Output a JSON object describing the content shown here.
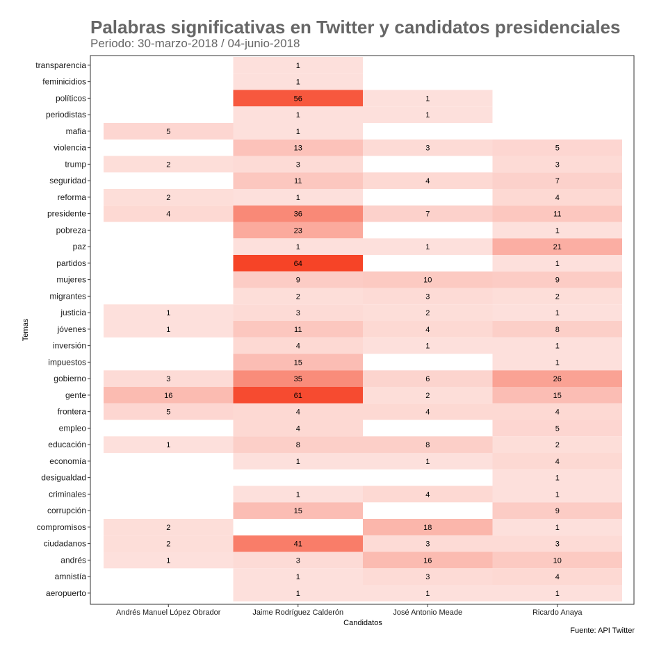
{
  "chart_data": {
    "type": "heatmap",
    "title": "Palabras significativas en Twitter y candidatos presidenciales",
    "subtitle": "Periodo: 30-marzo-2018 / 04-junio-2018",
    "xlabel": "Candidatos",
    "ylabel": "Temas",
    "caption": "Fuente: API Twitter",
    "grid": false,
    "legend": "none",
    "color_low": "#fde0dc",
    "color_high": "#f64427",
    "value_range": [
      1,
      64
    ],
    "columns": [
      "Andrés Manuel López Obrador",
      "Jaime Rodríguez Calderón",
      "José Antonio Meade",
      "Ricardo Anaya"
    ],
    "rows": [
      "transparencia",
      "feminicidios",
      "políticos",
      "periodistas",
      "mafia",
      "violencia",
      "trump",
      "seguridad",
      "reforma",
      "presidente",
      "pobreza",
      "paz",
      "partidos",
      "mujeres",
      "migrantes",
      "justicia",
      "jóvenes",
      "inversión",
      "impuestos",
      "gobierno",
      "gente",
      "frontera",
      "empleo",
      "educación",
      "economía",
      "desigualdad",
      "criminales",
      "corrupción",
      "compromisos",
      "ciudadanos",
      "andrés",
      "amnistía",
      "aeropuerto"
    ],
    "values": [
      [
        null,
        1,
        null,
        null
      ],
      [
        null,
        1,
        null,
        null
      ],
      [
        null,
        56,
        1,
        null
      ],
      [
        null,
        1,
        1,
        null
      ],
      [
        5,
        1,
        null,
        null
      ],
      [
        null,
        13,
        3,
        5
      ],
      [
        2,
        3,
        null,
        3
      ],
      [
        null,
        11,
        4,
        7
      ],
      [
        2,
        1,
        null,
        4
      ],
      [
        4,
        36,
        7,
        11
      ],
      [
        null,
        23,
        null,
        1
      ],
      [
        null,
        1,
        1,
        21
      ],
      [
        null,
        64,
        null,
        1
      ],
      [
        null,
        9,
        10,
        9
      ],
      [
        null,
        2,
        3,
        2
      ],
      [
        1,
        3,
        2,
        1
      ],
      [
        1,
        11,
        4,
        8
      ],
      [
        null,
        4,
        1,
        1
      ],
      [
        null,
        15,
        null,
        1
      ],
      [
        3,
        35,
        6,
        26
      ],
      [
        16,
        61,
        2,
        15
      ],
      [
        5,
        4,
        4,
        4
      ],
      [
        null,
        4,
        null,
        5
      ],
      [
        1,
        8,
        8,
        2
      ],
      [
        null,
        1,
        1,
        4
      ],
      [
        null,
        null,
        null,
        1
      ],
      [
        null,
        1,
        4,
        1
      ],
      [
        null,
        15,
        null,
        9
      ],
      [
        2,
        null,
        18,
        1
      ],
      [
        2,
        41,
        3,
        3
      ],
      [
        1,
        3,
        16,
        10
      ],
      [
        null,
        1,
        3,
        4
      ],
      [
        null,
        1,
        1,
        1
      ]
    ]
  }
}
